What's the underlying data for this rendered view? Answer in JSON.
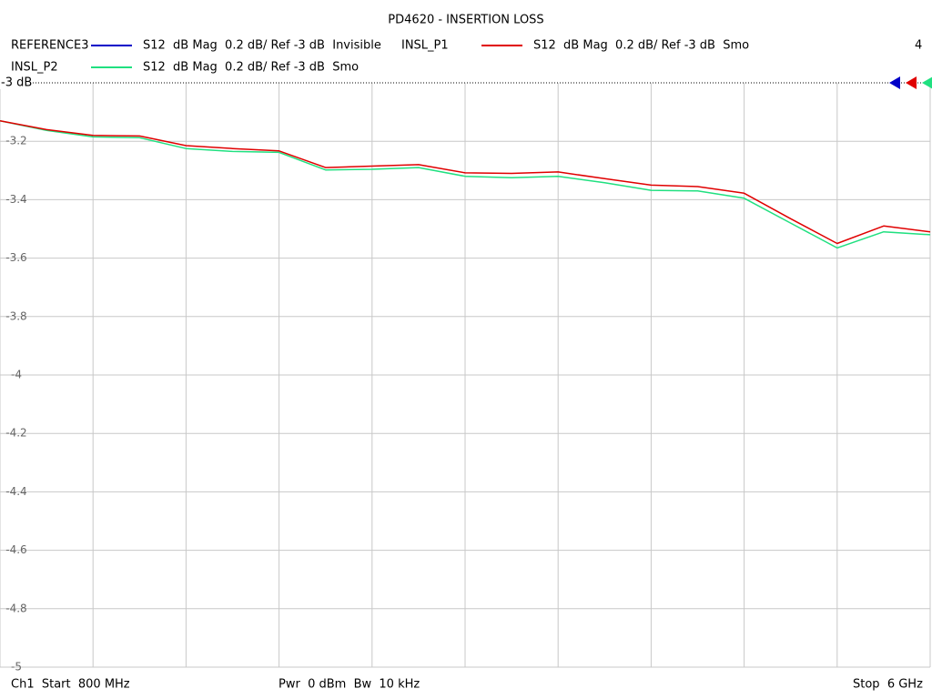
{
  "chart_data": {
    "type": "line",
    "title": "PD4620 - INSERTION LOSS",
    "channel_number": "4",
    "series": [
      {
        "name": "REFERENCE3",
        "color": "#0000c8",
        "label": "S12  dB Mag  0.2 dB/ Ref -3 dB  Invisible"
      },
      {
        "name": "INSL_P1",
        "color": "#e00000",
        "label": "S12  dB Mag  0.2 dB/ Ref -3 dB  Smo",
        "values": [
          -3.13,
          -3.16,
          -3.18,
          -3.182,
          -3.215,
          -3.225,
          -3.233,
          -3.29,
          -3.285,
          -3.28,
          -3.308,
          -3.31,
          -3.305,
          -3.328,
          -3.35,
          -3.355,
          -3.378,
          -3.465,
          -3.55,
          -3.49,
          -3.51
        ]
      },
      {
        "name": "INSL_P2",
        "color": "#20e080",
        "label": "S12  dB Mag  0.2 dB/ Ref -3 dB  Smo",
        "values": [
          -3.13,
          -3.163,
          -3.185,
          -3.188,
          -3.225,
          -3.235,
          -3.238,
          -3.298,
          -3.296,
          -3.29,
          -3.32,
          -3.325,
          -3.32,
          -3.342,
          -3.368,
          -3.37,
          -3.395,
          -3.48,
          -3.565,
          -3.51,
          -3.52
        ]
      }
    ],
    "x": [
      800,
      1060,
      1320,
      1580,
      1840,
      2100,
      2360,
      2620,
      2880,
      3140,
      3400,
      3660,
      3920,
      4180,
      4440,
      4700,
      4960,
      5220,
      5480,
      5740,
      6000
    ],
    "xlim": [
      800,
      6000
    ],
    "x_divisions": 10,
    "ylim": [
      -5,
      -3
    ],
    "yticks": [
      -3.2,
      -3.4,
      -3.6,
      -3.8,
      -4,
      -4.2,
      -4.4,
      -4.6,
      -4.8,
      -5
    ],
    "reference": {
      "value": -3,
      "label": "-3 dB"
    },
    "grid": true,
    "footer": {
      "start": "Ch1  Start  800 MHz",
      "power": "Pwr  0 dBm  Bw  10 kHz",
      "stop": "Stop  6 GHz"
    }
  }
}
